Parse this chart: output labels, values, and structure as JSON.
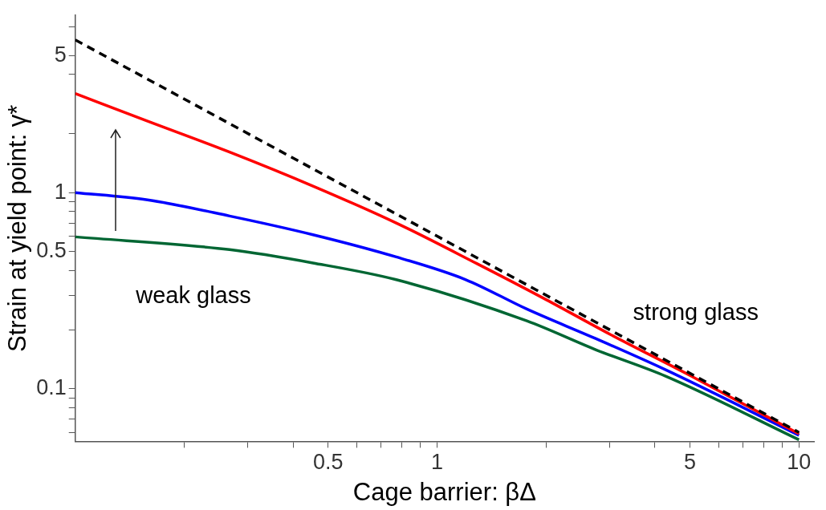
{
  "chart_data": {
    "type": "line",
    "xlabel": "Cage barrier: βΔ",
    "ylabel": "Strain at yield point: γ*",
    "log": "xy",
    "grid": false,
    "legend": false,
    "marker": "none",
    "xlim": [
      0.1,
      11
    ],
    "ylim": [
      0.054,
      8
    ],
    "xticks": [
      {
        "value": 0.2,
        "label": null
      },
      {
        "value": 0.3,
        "label": null
      },
      {
        "value": 0.4,
        "label": null
      },
      0.5,
      {
        "value": 0.6,
        "label": null
      },
      {
        "value": 0.7,
        "label": null
      },
      {
        "value": 0.8,
        "label": null
      },
      {
        "value": 0.9,
        "label": null
      },
      1,
      {
        "value": 2,
        "label": null
      },
      {
        "value": 3,
        "label": null
      },
      {
        "value": 4,
        "label": null
      },
      5,
      {
        "value": 6,
        "label": null
      },
      {
        "value": 7,
        "label": null
      },
      {
        "value": 8,
        "label": null
      },
      {
        "value": 9,
        "label": null
      },
      10
    ],
    "yticks": [
      {
        "value": 0.06,
        "label": null
      },
      {
        "value": 0.07,
        "label": null
      },
      {
        "value": 0.08,
        "label": null
      },
      {
        "value": 0.09,
        "label": null
      },
      0.1,
      {
        "value": 0.2,
        "label": null
      },
      {
        "value": 0.3,
        "label": null
      },
      {
        "value": 0.4,
        "label": null
      },
      0.5,
      {
        "value": 0.6,
        "label": null
      },
      {
        "value": 0.7,
        "label": null
      },
      {
        "value": 0.8,
        "label": null
      },
      {
        "value": 0.9,
        "label": null
      },
      1,
      {
        "value": 2,
        "label": null
      },
      {
        "value": 4,
        "label": null
      },
      5,
      {
        "value": 7,
        "label": null
      }
    ],
    "annotations": [
      "weak glass",
      "strong glass"
    ],
    "series": [
      {
        "color": "#000000",
        "line_style": "dashed",
        "x": [
          0.1,
          10
        ],
        "values": [
          6,
          0.06
        ]
      },
      {
        "color": "#ff0000",
        "line_style": "solid",
        "x": [
          0.1,
          0.157,
          0.267,
          0.454,
          0.771,
          1.29,
          2,
          3,
          5,
          10
        ],
        "values": [
          3.2,
          2.33,
          1.61,
          1.08,
          0.7,
          0.434,
          0.285,
          0.19,
          0.117,
          0.059
        ]
      },
      {
        "color": "#0000ff",
        "line_style": "solid",
        "x": [
          0.1,
          0.157,
          0.267,
          0.454,
          0.771,
          1.2,
          1.77,
          2.75,
          4.28,
          10
        ],
        "values": [
          1.0,
          0.92,
          0.76,
          0.61,
          0.47,
          0.36,
          0.255,
          0.18,
          0.125,
          0.058
        ]
      },
      {
        "color": "#006633",
        "line_style": "solid",
        "x": [
          0.1,
          0.267,
          0.454,
          0.771,
          1.77,
          2.75,
          4.28,
          10
        ],
        "values": [
          0.595,
          0.512,
          0.438,
          0.36,
          0.222,
          0.158,
          0.116,
          0.055
        ]
      }
    ]
  }
}
